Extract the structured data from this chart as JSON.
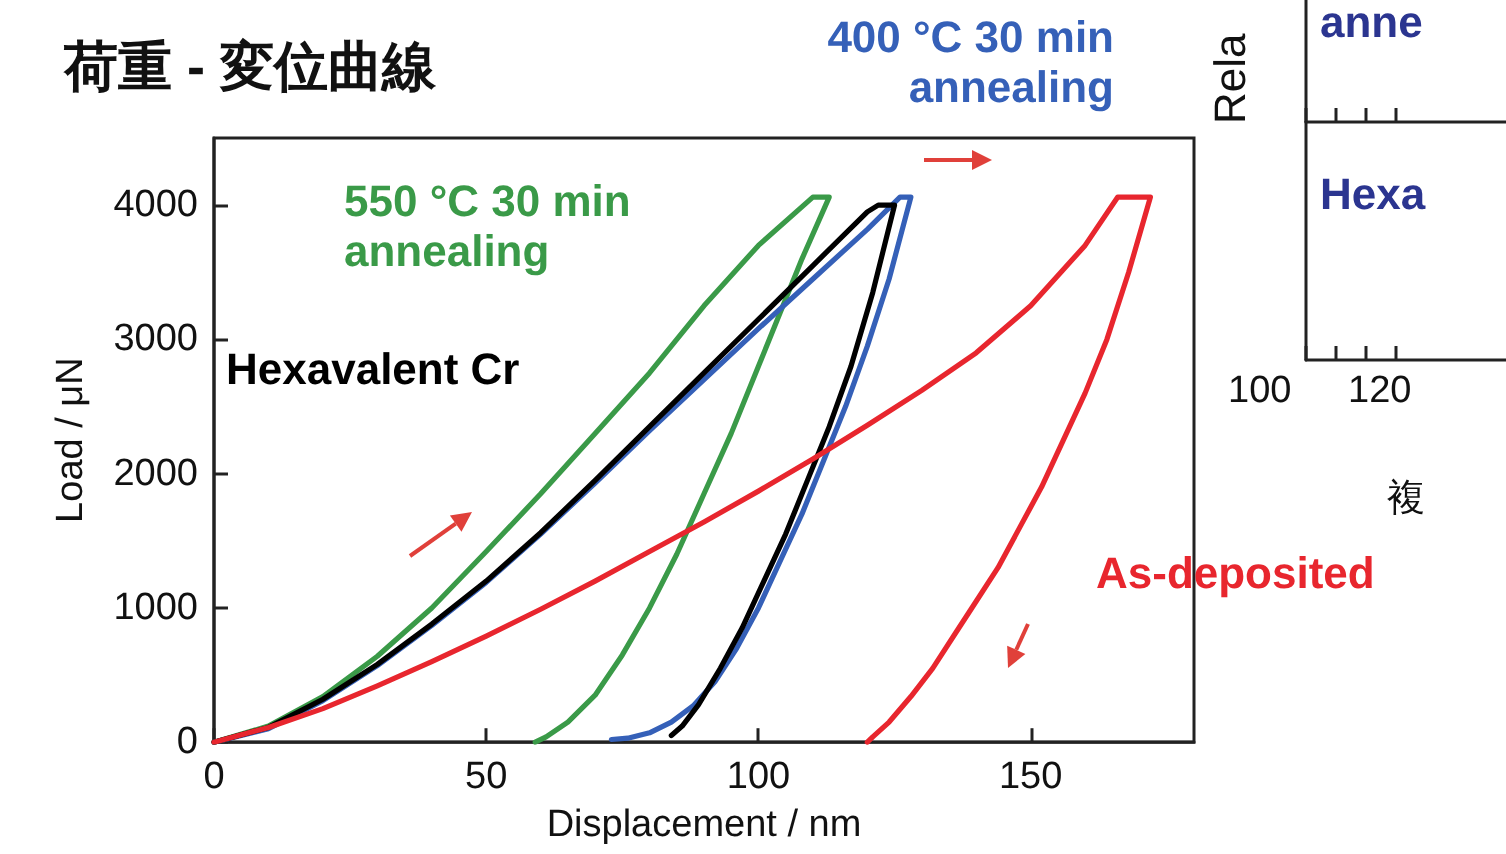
{
  "chart_data": [
    {
      "type": "line",
      "title": "荷重 - 変位曲線",
      "xlabel": "Displacement / nm",
      "ylabel": "Load / μN",
      "xlim": [
        0,
        180
      ],
      "xticks": [
        0,
        50,
        100,
        150
      ],
      "ylim": [
        0,
        4500
      ],
      "yticks": [
        0,
        1000,
        2000,
        3000,
        4000
      ],
      "grid": false,
      "legend": false,
      "marker": "none",
      "line_style": "solid",
      "series": [
        {
          "name": "550 °C 30 min\nannealing",
          "color": "#3a9a48",
          "x": [
            0,
            10,
            20,
            30,
            40,
            50,
            60,
            70,
            80,
            90,
            100,
            110,
            113,
            108,
            104,
            100,
            95,
            90,
            85,
            80,
            75,
            70,
            65,
            61,
            59
          ],
          "values": [
            0,
            120,
            340,
            640,
            1000,
            1420,
            1850,
            2300,
            2750,
            3250,
            3700,
            4060,
            4060,
            3600,
            3200,
            2800,
            2300,
            1850,
            1400,
            1000,
            650,
            350,
            150,
            40,
            0
          ]
        },
        {
          "name": "400 °C 30 min\nannealing",
          "color": "#3560b8",
          "x": [
            0,
            10,
            20,
            30,
            40,
            50,
            60,
            70,
            80,
            90,
            100,
            110,
            120,
            126,
            128,
            124,
            120,
            116,
            112,
            108,
            104,
            100,
            96,
            92,
            88,
            84,
            80,
            76,
            73
          ],
          "values": [
            0,
            100,
            310,
            570,
            870,
            1190,
            1550,
            1930,
            2320,
            2700,
            3080,
            3450,
            3820,
            4060,
            4060,
            3450,
            2950,
            2500,
            2100,
            1700,
            1350,
            1000,
            700,
            450,
            270,
            150,
            70,
            30,
            20
          ]
        },
        {
          "name": "Hexavalent Cr",
          "color": "#000000",
          "x": [
            0,
            10,
            20,
            30,
            40,
            50,
            60,
            70,
            80,
            90,
            100,
            110,
            120,
            122,
            125,
            121,
            117,
            113,
            109,
            105,
            101,
            97,
            93,
            89,
            86,
            84
          ],
          "values": [
            0,
            110,
            320,
            580,
            880,
            1200,
            1560,
            1950,
            2350,
            2750,
            3150,
            3550,
            3950,
            4000,
            4000,
            3350,
            2800,
            2350,
            1950,
            1550,
            1200,
            850,
            550,
            280,
            120,
            50
          ]
        },
        {
          "name": "As-deposited",
          "color": "#e8262e",
          "x": [
            0,
            10,
            20,
            30,
            40,
            50,
            60,
            70,
            80,
            90,
            100,
            110,
            120,
            130,
            140,
            150,
            160,
            166,
            172,
            168,
            164,
            160,
            156,
            152,
            148,
            144,
            140,
            136,
            132,
            128,
            124,
            121,
            120
          ],
          "values": [
            0,
            110,
            250,
            420,
            600,
            790,
            990,
            1200,
            1420,
            1640,
            1870,
            2110,
            2360,
            2620,
            2900,
            3250,
            3700,
            4060,
            4060,
            3500,
            3000,
            2600,
            2250,
            1900,
            1600,
            1300,
            1050,
            800,
            550,
            340,
            150,
            40,
            0
          ]
        }
      ]
    },
    {
      "type": "other",
      "xlabel": "複",
      "ylabel": "Rela",
      "annotations": [
        "anne",
        "Hexa",
        "100",
        "120"
      ]
    }
  ]
}
